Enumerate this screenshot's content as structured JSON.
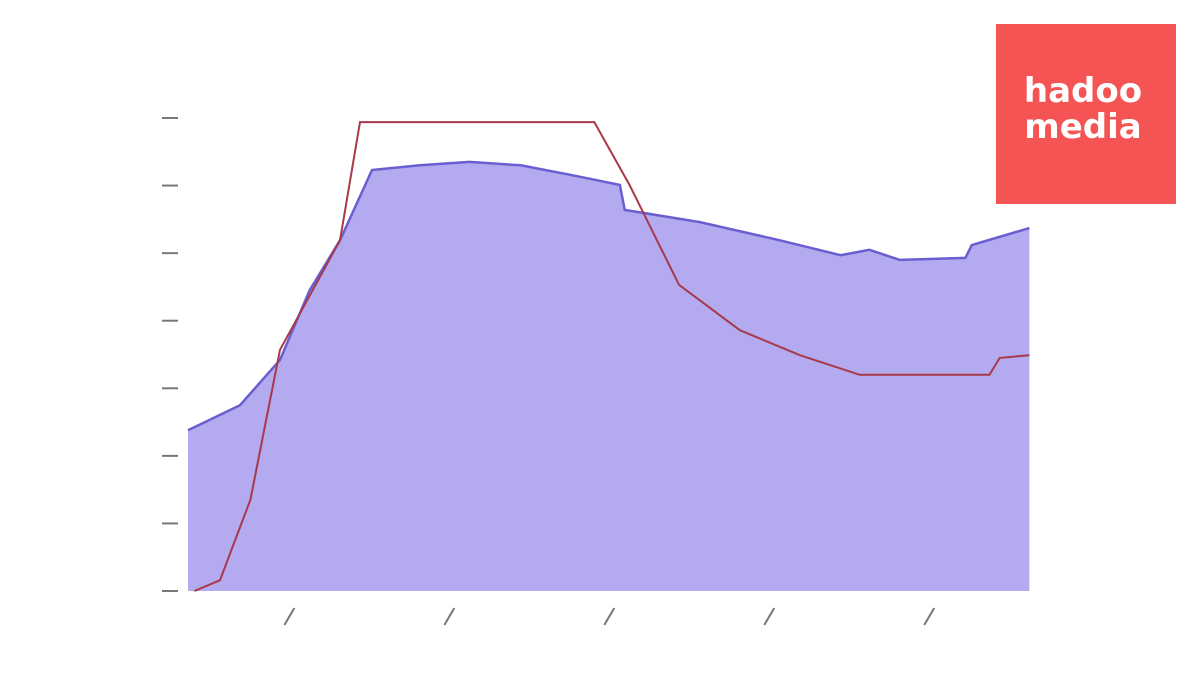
{
  "chart_data": {
    "type": "area-line",
    "xlim": [
      0.36,
      5.63
    ],
    "xticks": [
      1,
      2,
      3,
      4,
      5
    ],
    "ylim": [
      0,
      7
    ],
    "yticks": [
      0,
      1,
      2,
      3,
      4,
      5,
      6,
      7
    ],
    "series": [
      {
        "kind": "area",
        "color": "#6a5fd0",
        "fill": "#b4aaf0",
        "x": [
          0.36,
          0.685,
          0.935,
          1.12,
          1.31,
          1.51,
          1.81,
          2.12,
          2.44,
          2.75,
          3.06,
          3.09,
          3.56,
          4.06,
          4.44,
          4.62,
          4.81,
          5.22,
          5.26,
          5.62
        ],
        "values": [
          2.38,
          2.75,
          3.42,
          4.45,
          5.19,
          6.23,
          6.3,
          6.35,
          6.3,
          6.16,
          6.01,
          5.64,
          5.46,
          5.19,
          4.97,
          5.05,
          4.9,
          4.93,
          5.12,
          5.37
        ]
      },
      {
        "kind": "line",
        "color": "#a8384a",
        "x": [
          0.4,
          0.56,
          0.75,
          0.935,
          1.31,
          1.435,
          2.9,
          3.12,
          3.43,
          3.81,
          4.185,
          4.56,
          5.37,
          5.435,
          5.62
        ],
        "values": [
          0,
          0.16,
          1.35,
          3.57,
          5.19,
          6.94,
          6.94,
          6.01,
          4.53,
          3.86,
          3.49,
          3.2,
          3.2,
          3.45,
          3.49
        ]
      }
    ]
  },
  "logo": {
    "line1": "hadoo",
    "line2": "media"
  }
}
